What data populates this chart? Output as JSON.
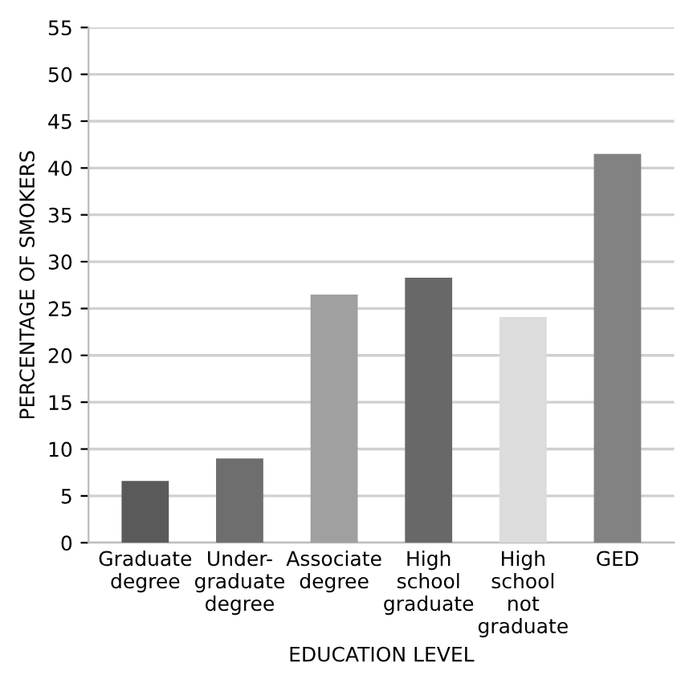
{
  "chart_data": {
    "type": "bar",
    "xlabel": "EDUCATION LEVEL",
    "ylabel": "PERCENTAGE OF SMOKERS",
    "categories": [
      "Graduate\ndegree",
      "Under-\ngraduate\ndegree",
      "Associate\ndegree",
      "High\nschool\ngraduate",
      "High\nschool\nnot\ngraduate",
      "GED"
    ],
    "values": [
      6.6,
      9.0,
      26.5,
      28.3,
      24.1,
      41.5
    ],
    "colors": [
      "#5a5a5a",
      "#6e6e6e",
      "#a0a0a0",
      "#686868",
      "#dcdcdc",
      "#828282"
    ],
    "ylim": [
      0,
      55
    ],
    "yticks": [
      0,
      5,
      10,
      15,
      20,
      25,
      30,
      35,
      40,
      45,
      50,
      55
    ],
    "grid": "y",
    "legend": false
  }
}
